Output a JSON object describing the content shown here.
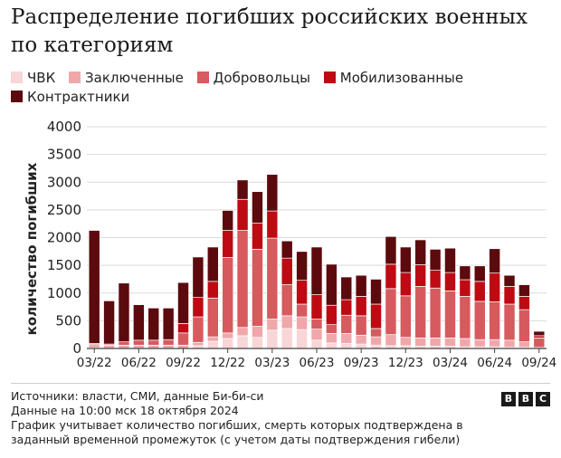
{
  "header": {
    "title": "Распределение погибших российских военных по категориям"
  },
  "chart_data": {
    "type": "bar",
    "stacked": true,
    "title": "Распределение погибших российских военных по категориям",
    "xlabel": "",
    "ylabel": "количество погибших",
    "ylim": [
      0,
      4000
    ],
    "yticks": [
      0,
      500,
      1000,
      1500,
      2000,
      2500,
      3000,
      3500,
      4000
    ],
    "grid": true,
    "categories": [
      "03/22",
      "04/22",
      "05/22",
      "06/22",
      "07/22",
      "08/22",
      "09/22",
      "10/22",
      "11/22",
      "12/22",
      "01/23",
      "02/23",
      "03/23",
      "04/23",
      "05/23",
      "06/23",
      "07/23",
      "08/23",
      "09/23",
      "10/23",
      "11/23",
      "12/23",
      "01/24",
      "02/24",
      "03/24",
      "04/24",
      "05/24",
      "06/24",
      "07/24",
      "08/24",
      "09/24"
    ],
    "tick_labels": [
      "03/22",
      "06/22",
      "09/22",
      "12/22",
      "03/23",
      "06/23",
      "09/23",
      "12/23",
      "03/24",
      "06/24",
      "09/24"
    ],
    "tick_indices": [
      0,
      3,
      6,
      9,
      12,
      15,
      18,
      21,
      24,
      27,
      30
    ],
    "series": [
      {
        "name": "ЧВК",
        "color": "#f8d5d7",
        "values": [
          10,
          0,
          0,
          0,
          0,
          0,
          0,
          50,
          130,
          180,
          230,
          200,
          330,
          360,
          340,
          150,
          100,
          90,
          80,
          60,
          50,
          50,
          40,
          40,
          40,
          30,
          30,
          30,
          20,
          20,
          0
        ]
      },
      {
        "name": "Заключенные",
        "color": "#f0a7aa",
        "values": [
          60,
          60,
          60,
          60,
          60,
          60,
          60,
          60,
          80,
          100,
          150,
          200,
          200,
          230,
          230,
          200,
          170,
          180,
          160,
          150,
          200,
          150,
          150,
          150,
          150,
          150,
          130,
          130,
          130,
          100,
          20
        ]
      },
      {
        "name": "Добровольцы",
        "color": "#d65a5e",
        "values": [
          20,
          20,
          60,
          90,
          90,
          100,
          220,
          460,
          700,
          1360,
          1750,
          1390,
          1460,
          560,
          230,
          180,
          160,
          330,
          350,
          150,
          830,
          750,
          930,
          900,
          850,
          760,
          690,
          680,
          650,
          580,
          170
        ]
      },
      {
        "name": "Мобилизованные",
        "color": "#be0a12",
        "values": [
          0,
          0,
          0,
          0,
          0,
          0,
          170,
          350,
          300,
          490,
          560,
          470,
          490,
          480,
          430,
          440,
          350,
          280,
          350,
          440,
          440,
          420,
          390,
          320,
          330,
          300,
          360,
          520,
          320,
          240,
          40
        ]
      },
      {
        "name": "Контрактники",
        "color": "#5c0a0d",
        "values": [
          2040,
          780,
          1060,
          640,
          580,
          570,
          740,
          730,
          620,
          360,
          350,
          570,
          660,
          310,
          520,
          860,
          740,
          410,
          380,
          450,
          500,
          460,
          450,
          380,
          440,
          250,
          280,
          440,
          200,
          210,
          80
        ]
      }
    ]
  },
  "footer": {
    "sources": "Источники: власти, СМИ, данные Би-би-си",
    "date": "Данные на 10:00 мск 18 октября 2024",
    "note": "График учитывает количество погибших, смерть которых подтверждена в заданный временной промежуток (с учетом даты подтверждения гибели)",
    "brand": [
      "B",
      "B",
      "C"
    ]
  }
}
